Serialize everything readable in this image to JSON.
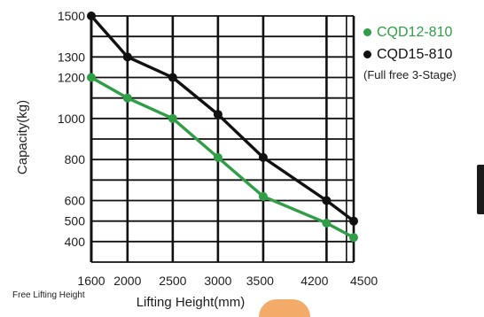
{
  "chart_data": {
    "type": "line",
    "title": "",
    "xlabel": "Lifting Height(mm)",
    "ylabel": "Capacity(kg)",
    "x_ticks": [
      1600,
      2000,
      2500,
      3000,
      3500,
      4200,
      4500
    ],
    "y_ticks": [
      400,
      500,
      600,
      800,
      1000,
      1200,
      1300,
      1500
    ],
    "xlim": [
      1600,
      4500
    ],
    "ylim": [
      300,
      1500
    ],
    "grid": true,
    "legend_position": "right",
    "legend_note": "(Full free 3-Stage)",
    "corner_label": "Free Lifting Height",
    "series": [
      {
        "name": "CQD12-810",
        "color": "#2f9e46",
        "x": [
          1600,
          2000,
          2500,
          3000,
          3500,
          4200,
          4500
        ],
        "y": [
          1200,
          1100,
          1000,
          810,
          620,
          490,
          420
        ]
      },
      {
        "name": "CQD15-810",
        "color": "#111111",
        "x": [
          1600,
          2000,
          2500,
          3000,
          3500,
          4200,
          4500
        ],
        "y": [
          1500,
          1300,
          1200,
          1020,
          810,
          600,
          500
        ]
      }
    ]
  }
}
